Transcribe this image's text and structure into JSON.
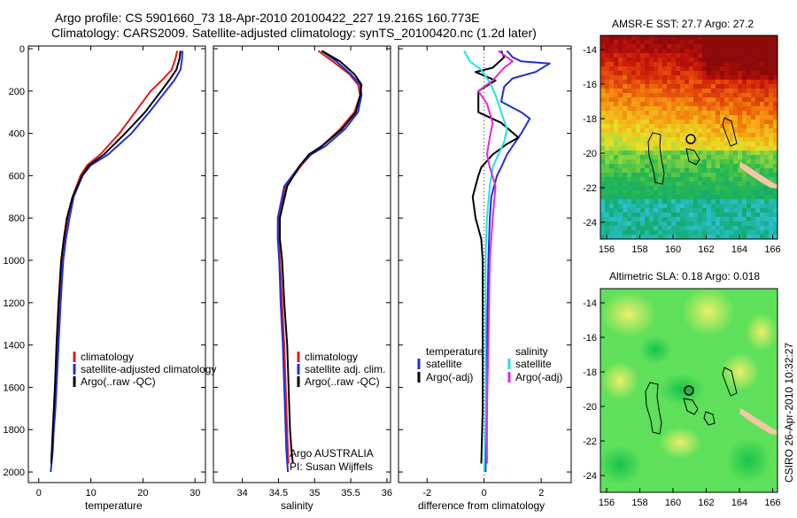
{
  "header": {
    "line1": "Argo profile: CS 5901660_73 18-Apr-2010 20100422_227 19.216S 160.773E",
    "line2": "Climatology: CARS2009. Satellite-adjusted climatology: synTS_20100420.nc (1.2d later)"
  },
  "colors": {
    "red": "#e01b1b",
    "blue": "#1f2fd8",
    "black": "#000000",
    "cyan": "#22e0e6",
    "magenta": "#e02ae0",
    "coast": "#f5c7a6",
    "island": "#000000"
  },
  "chart_data": [
    {
      "type": "line",
      "id": "temperature",
      "xlabel": "temperature",
      "ylabel": "",
      "xlim": [
        -2,
        32
      ],
      "ylim": [
        2050,
        0
      ],
      "xticks": [
        0,
        10,
        20,
        30
      ],
      "yticks": [
        0,
        200,
        400,
        600,
        800,
        1000,
        1200,
        1400,
        1600,
        1800,
        2000
      ],
      "legend": [
        "climatology",
        "satellite-adjusted climatology",
        "Argo(..raw -QC)"
      ],
      "series": [
        {
          "name": "climatology",
          "color": "red",
          "x": [
            26.6,
            26.2,
            25.5,
            23.6,
            21.5,
            18.5,
            15.5,
            11.8,
            9.3,
            8.0,
            6.5,
            5.6,
            5.0,
            4.5,
            4.0,
            3.6,
            3.3,
            3.0,
            2.8,
            2.6,
            2.4
          ],
          "y": [
            10,
            50,
            100,
            150,
            200,
            300,
            400,
            500,
            550,
            600,
            700,
            800,
            900,
            1000,
            1200,
            1400,
            1600,
            1700,
            1800,
            1900,
            1960
          ]
        },
        {
          "name": "satellite-adjusted climatology",
          "color": "blue",
          "x": [
            27.6,
            27.5,
            27.2,
            26.0,
            24.4,
            21.2,
            17.8,
            13.3,
            10.0,
            8.4,
            6.7,
            5.9,
            5.2,
            4.7,
            4.2,
            3.8,
            3.4,
            3.2,
            2.9,
            2.7,
            2.3
          ],
          "y": [
            10,
            50,
            100,
            150,
            200,
            300,
            400,
            500,
            550,
            600,
            700,
            800,
            900,
            1000,
            1200,
            1400,
            1600,
            1700,
            1800,
            1900,
            2000
          ]
        },
        {
          "name": "Argo(..raw -QC)",
          "color": "black",
          "x": [
            27.2,
            27.0,
            26.4,
            25.0,
            23.5,
            20.4,
            16.6,
            12.5,
            9.7,
            8.3,
            6.5,
            5.4,
            4.8,
            4.3,
            3.8,
            3.4,
            3.1,
            2.9,
            2.7,
            2.5,
            2.4
          ],
          "y": [
            10,
            50,
            100,
            150,
            200,
            300,
            400,
            500,
            550,
            600,
            700,
            800,
            900,
            1000,
            1200,
            1400,
            1600,
            1700,
            1800,
            1900,
            1960
          ]
        }
      ]
    },
    {
      "type": "line",
      "id": "salinity",
      "xlabel": "salinity",
      "xlim": [
        33.6,
        36.05
      ],
      "ylim": [
        2050,
        0
      ],
      "xticks": [
        34,
        34.5,
        35,
        35.5,
        36
      ],
      "legend": [
        "climatology",
        "satellite adj. clim.",
        "Argo(..raw -QC)"
      ],
      "annotation": [
        "Argo AUSTRALIA",
        "PI: Susan Wijffels"
      ],
      "series": [
        {
          "name": "climatology",
          "color": "red",
          "x": [
            35.05,
            35.25,
            35.48,
            35.6,
            35.63,
            35.55,
            35.35,
            35.1,
            34.95,
            34.82,
            34.6,
            34.5,
            34.5,
            34.52,
            34.55,
            34.58,
            34.6,
            34.62,
            34.63,
            34.64
          ],
          "y": [
            10,
            60,
            120,
            170,
            220,
            300,
            380,
            460,
            500,
            550,
            650,
            800,
            900,
            1000,
            1200,
            1400,
            1600,
            1800,
            1900,
            1960
          ]
        },
        {
          "name": "satellite adj. clim.",
          "color": "blue",
          "x": [
            35.1,
            35.3,
            35.5,
            35.63,
            35.65,
            35.6,
            35.42,
            35.15,
            34.95,
            34.8,
            34.58,
            34.49,
            34.49,
            34.51,
            34.53,
            34.56,
            34.58,
            34.6,
            34.61,
            34.63
          ],
          "y": [
            10,
            60,
            120,
            170,
            220,
            300,
            380,
            460,
            500,
            550,
            650,
            800,
            900,
            1000,
            1200,
            1400,
            1600,
            1800,
            1900,
            2000
          ]
        },
        {
          "name": "Argo(..raw -QC)",
          "color": "black",
          "x": [
            35.1,
            35.35,
            35.55,
            35.65,
            35.63,
            35.57,
            35.38,
            35.1,
            34.92,
            34.8,
            34.62,
            34.52,
            34.52,
            34.55,
            34.58,
            34.62,
            34.64,
            34.66,
            34.68,
            34.7
          ],
          "y": [
            10,
            60,
            120,
            170,
            220,
            300,
            380,
            460,
            500,
            550,
            650,
            800,
            900,
            1000,
            1200,
            1400,
            1600,
            1800,
            1900,
            1960
          ]
        }
      ]
    },
    {
      "type": "line",
      "id": "difference",
      "xlabel": "difference from climatology",
      "xlim": [
        -3,
        3.05
      ],
      "ylim": [
        2050,
        0
      ],
      "xticks": [
        -2,
        0,
        2
      ],
      "legend_left_title": "temperature",
      "legend_right_title": "salinity",
      "legend_left": [
        "satellite",
        "Argo(-adj)"
      ],
      "legend_right": [
        "satellite",
        "Argo(-adj)"
      ],
      "series": [
        {
          "name": "temperature satellite",
          "color": "blue",
          "x": [
            0.8,
            1.0,
            1.3,
            2.3,
            1.8,
            1.0,
            0.7,
            0.6,
            1.3,
            1.6,
            1.3,
            0.8,
            0.6,
            0.45,
            0.25,
            0.2,
            0.15,
            0.1,
            0.1,
            0.05
          ],
          "y": [
            10,
            40,
            60,
            70,
            110,
            140,
            180,
            250,
            300,
            330,
            400,
            500,
            560,
            600,
            700,
            800,
            1000,
            1400,
            1700,
            2000
          ]
        },
        {
          "name": "temperature Argo(-adj)",
          "color": "black",
          "x": [
            0.6,
            0.7,
            0.3,
            -0.3,
            0.4,
            -0.2,
            -0.2,
            0.6,
            1.2,
            0.8,
            0.3,
            -0.1,
            -0.2,
            -0.4,
            -0.3,
            -0.1,
            -0.05,
            -0.05,
            -0.05,
            -0.1
          ],
          "y": [
            10,
            40,
            90,
            110,
            150,
            200,
            300,
            350,
            420,
            450,
            500,
            560,
            600,
            700,
            800,
            900,
            1000,
            1400,
            1700,
            1960
          ]
        },
        {
          "name": "salinity satellite",
          "color": "cyan",
          "x": [
            -0.7,
            -0.5,
            -0.1,
            0.2,
            0.4,
            0.6,
            0.8,
            0.7,
            0.5,
            0.3,
            0.2,
            0.1,
            0.05,
            0.05,
            0.05,
            0.0
          ],
          "y": [
            10,
            60,
            100,
            160,
            220,
            300,
            380,
            440,
            500,
            560,
            650,
            800,
            1000,
            1400,
            1700,
            2000
          ]
        },
        {
          "name": "salinity Argo(-adj)",
          "color": "magenta",
          "x": [
            0.5,
            1.0,
            0.7,
            0.3,
            -0.2,
            0.1,
            0.3,
            0.2,
            0.1,
            0.2,
            0.4,
            0.3,
            0.2,
            0.15,
            0.1,
            0.1
          ],
          "y": [
            10,
            60,
            90,
            150,
            200,
            260,
            350,
            420,
            500,
            560,
            650,
            800,
            1000,
            1400,
            1700,
            1960
          ]
        }
      ]
    }
  ],
  "maps": {
    "sst": {
      "title": "AMSR-E SST: 27.7 Argo: 27.2",
      "xticks": [
        "156",
        "158",
        "160",
        "162",
        "164",
        "166"
      ],
      "yticks": [
        "-14",
        "-16",
        "-18",
        "-20",
        "-22",
        "-24"
      ]
    },
    "sla": {
      "title": "Altimetric SLA: 0.18 Argo: 0.018",
      "xticks": [
        "156",
        "158",
        "160",
        "162",
        "164",
        "166"
      ],
      "yticks": [
        "-14",
        "-16",
        "-18",
        "-20",
        "-22",
        "-24"
      ]
    }
  },
  "footer": {
    "stamp": "CSIRO 26-Apr-2010 10:32:27"
  }
}
